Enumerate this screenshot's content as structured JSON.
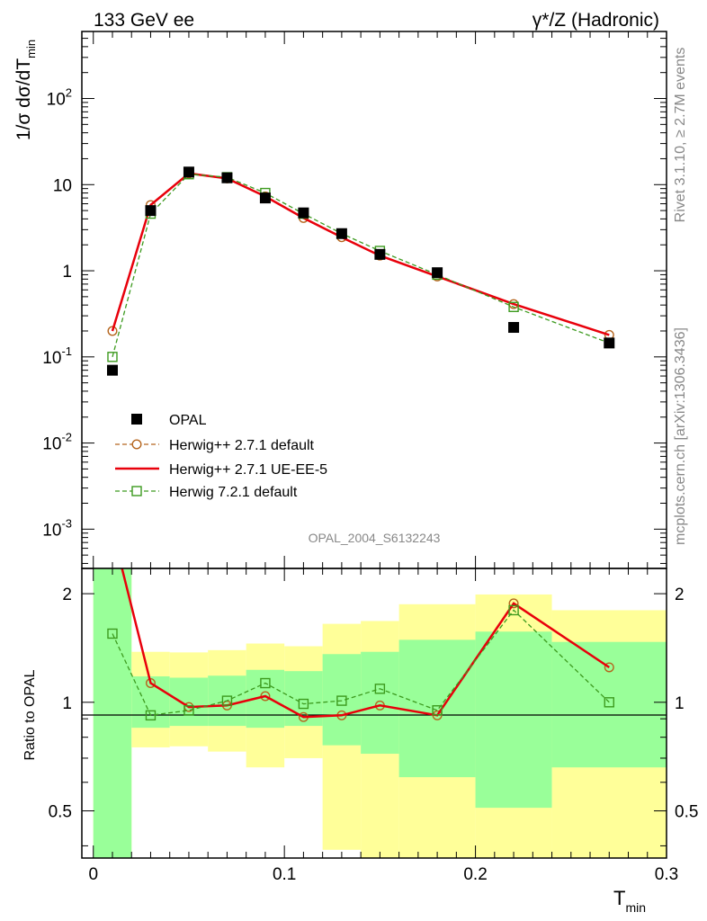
{
  "header": {
    "left_title": "133 GeV ee",
    "right_title": "γ*/Z (Hadronic)"
  },
  "side_text": {
    "version": "Rivet 3.1.10, ≥ 2.7M events",
    "source": "mcplots.cern.ch [arXiv:1306.3436]"
  },
  "watermark": "OPAL_2004_S6132243",
  "axes": {
    "ylabel_main": "1/σ dσ/dT",
    "ylabel_main_sub": "min",
    "ylabel_ratio": "Ratio to OPAL",
    "xlabel": "T",
    "xlabel_sub": "min"
  },
  "chart_data": [
    {
      "panel": "main",
      "type": "line",
      "yscale": "log",
      "xlim": [
        -0.006,
        0.3
      ],
      "ylim": [
        0.00035,
        600
      ],
      "yticks": [
        {
          "value": 0.001,
          "base": "10",
          "exp": "-3"
        },
        {
          "value": 0.01,
          "base": "10",
          "exp": "-2"
        },
        {
          "value": 0.1,
          "base": "10",
          "exp": "-1"
        },
        {
          "value": 1,
          "base": "1",
          "exp": ""
        },
        {
          "value": 10,
          "base": "10",
          "exp": ""
        },
        {
          "value": 100,
          "base": "10",
          "exp": "2"
        }
      ],
      "legend_position": "bottom-left",
      "series": [
        {
          "name": "OPAL",
          "style": "data",
          "color": "#000000",
          "x": [
            0.01,
            0.03,
            0.05,
            0.07,
            0.09,
            0.11,
            0.13,
            0.15,
            0.18,
            0.22,
            0.27
          ],
          "values": [
            0.07,
            5.0,
            14.0,
            12.0,
            7.0,
            4.7,
            2.7,
            1.55,
            0.95,
            0.22,
            0.145
          ]
        },
        {
          "name": "Herwig++ 2.7.1 default",
          "style": "dashed-circle",
          "color": "#b5651d",
          "x": [
            0.01,
            0.03,
            0.05,
            0.07,
            0.09,
            0.11,
            0.13,
            0.15,
            0.18,
            0.22,
            0.27
          ],
          "values": [
            0.2,
            5.8,
            13.5,
            11.8,
            7.3,
            4.1,
            2.45,
            1.5,
            0.86,
            0.41,
            0.18
          ]
        },
        {
          "name": "Herwig++ 2.7.1 UE-EE-5",
          "style": "solid",
          "color": "#e8000b",
          "x": [
            0.01,
            0.03,
            0.05,
            0.07,
            0.09,
            0.11,
            0.13,
            0.15,
            0.18,
            0.22,
            0.27
          ],
          "values": [
            0.2,
            5.8,
            13.5,
            11.8,
            7.3,
            4.1,
            2.45,
            1.5,
            0.86,
            0.41,
            0.18
          ]
        },
        {
          "name": "Herwig 7.2.1 default",
          "style": "dashed-square",
          "color": "#3c9a1e",
          "x": [
            0.01,
            0.03,
            0.05,
            0.07,
            0.09,
            0.11,
            0.13,
            0.15,
            0.18,
            0.22,
            0.27
          ],
          "values": [
            0.1,
            4.6,
            13.2,
            12.2,
            8.0,
            4.6,
            2.7,
            1.7,
            0.9,
            0.38,
            0.145
          ]
        }
      ]
    },
    {
      "panel": "ratio",
      "type": "line",
      "xlim": [
        -0.006,
        0.3
      ],
      "ylim": [
        0.37,
        2.35
      ],
      "yticks": [
        0.5,
        1,
        2
      ],
      "xticks": [
        0,
        0.1,
        0.2,
        0.3
      ],
      "bands": [
        {
          "x0": 0.0,
          "x1": 0.02,
          "yellow": [
            0.37,
            2.35
          ],
          "green": [
            0.37,
            2.35
          ]
        },
        {
          "x0": 0.02,
          "x1": 0.04,
          "yellow": [
            0.75,
            1.38
          ],
          "green": [
            0.85,
            1.18
          ]
        },
        {
          "x0": 0.04,
          "x1": 0.06,
          "yellow": [
            0.755,
            1.375
          ],
          "green": [
            0.86,
            1.17
          ]
        },
        {
          "x0": 0.06,
          "x1": 0.08,
          "yellow": [
            0.73,
            1.395
          ],
          "green": [
            0.86,
            1.185
          ]
        },
        {
          "x0": 0.08,
          "x1": 0.1,
          "yellow": [
            0.66,
            1.455
          ],
          "green": [
            0.85,
            1.23
          ]
        },
        {
          "x0": 0.1,
          "x1": 0.12,
          "yellow": [
            0.7,
            1.43
          ],
          "green": [
            0.86,
            1.22
          ]
        },
        {
          "x0": 0.12,
          "x1": 0.14,
          "yellow": [
            0.39,
            1.65
          ],
          "green": [
            0.76,
            1.36
          ]
        },
        {
          "x0": 0.14,
          "x1": 0.16,
          "yellow": [
            0.37,
            1.68
          ],
          "green": [
            0.72,
            1.38
          ]
        },
        {
          "x0": 0.16,
          "x1": 0.2,
          "yellow": [
            0.37,
            1.87
          ],
          "green": [
            0.62,
            1.49
          ]
        },
        {
          "x0": 0.2,
          "x1": 0.24,
          "yellow": [
            0.37,
            1.99
          ],
          "green": [
            0.51,
            1.57
          ]
        },
        {
          "x0": 0.24,
          "x1": 0.3,
          "yellow": [
            0.37,
            1.8
          ],
          "green": [
            0.66,
            1.47
          ]
        }
      ],
      "series": [
        {
          "name": "Herwig++ 2.7.1 default",
          "style": "dashed-circle",
          "color": "#b5651d",
          "x": [
            0.01,
            0.03,
            0.05,
            0.07,
            0.09,
            0.11,
            0.13,
            0.15,
            0.18,
            0.22,
            0.27
          ],
          "values": [
            3.0,
            1.13,
            0.97,
            0.98,
            1.04,
            0.91,
            0.92,
            0.98,
            0.92,
            1.88,
            1.25
          ]
        },
        {
          "name": "Herwig++ 2.7.1 UE-EE-5",
          "style": "solid",
          "color": "#e8000b",
          "x": [
            0.01,
            0.03,
            0.05,
            0.07,
            0.09,
            0.11,
            0.13,
            0.15,
            0.18,
            0.22,
            0.27
          ],
          "values": [
            3.0,
            1.13,
            0.97,
            0.98,
            1.04,
            0.91,
            0.92,
            0.98,
            0.92,
            1.88,
            1.25
          ]
        },
        {
          "name": "Herwig 7.2.1 default",
          "style": "dashed-square",
          "color": "#3c9a1e",
          "x": [
            0.01,
            0.03,
            0.05,
            0.07,
            0.09,
            0.11,
            0.13,
            0.15,
            0.18,
            0.22,
            0.27
          ],
          "values": [
            1.55,
            0.92,
            0.95,
            1.01,
            1.13,
            0.99,
            1.01,
            1.09,
            0.95,
            1.8,
            1.0
          ]
        }
      ]
    }
  ]
}
